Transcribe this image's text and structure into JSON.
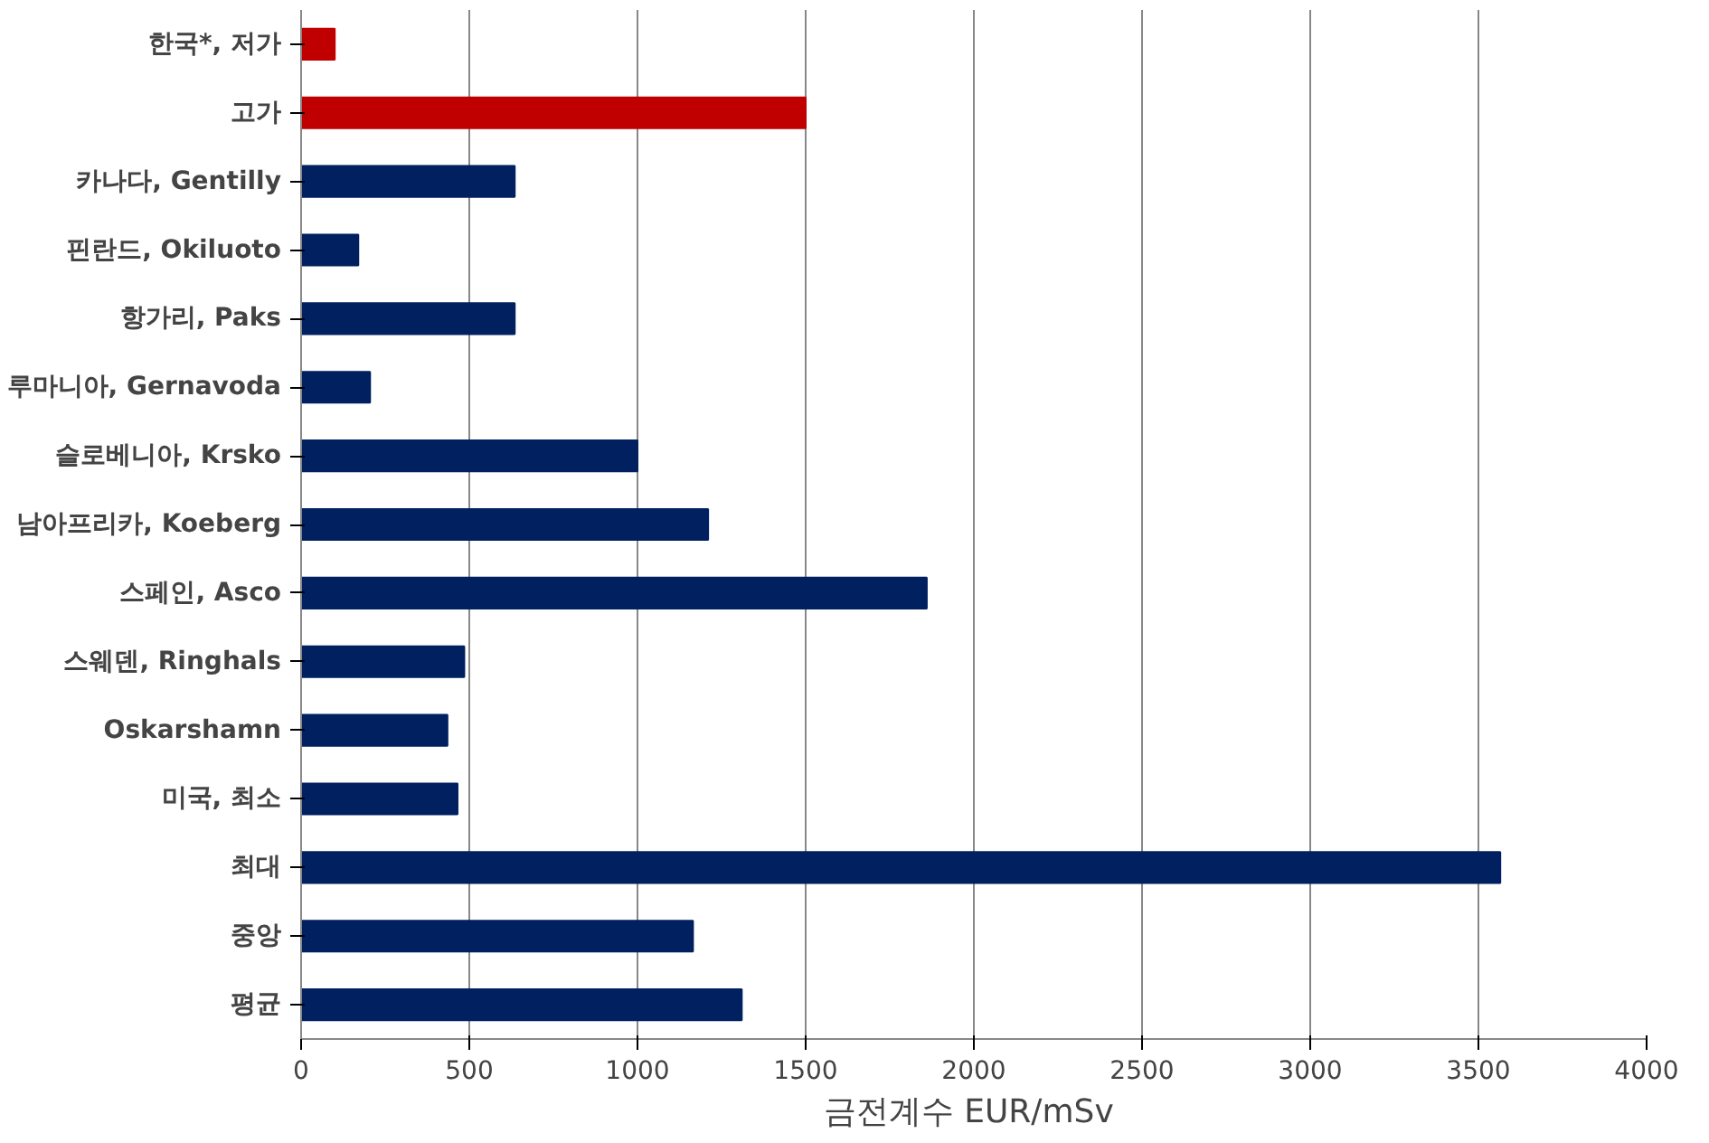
{
  "chart_data": {
    "type": "bar",
    "orientation": "horizontal",
    "xlabel": "금전계수  EUR/mSv",
    "categories": [
      "한국*, 저가",
      "고가",
      "카나다, Gentilly",
      "핀란드, Okiluoto",
      "항가리, Paks",
      "루마니아, Gernavoda",
      "슬로베니아, Krsko",
      "남아프리카, Koeberg",
      "스페인, Asco",
      "스웨덴, Ringhals",
      "Oskarshamn",
      "미국, 최소",
      "최대",
      "중앙",
      "평균"
    ],
    "values": [
      100,
      1500,
      635,
      170,
      635,
      205,
      1000,
      1210,
      1860,
      485,
      435,
      465,
      3565,
      1165,
      1310
    ],
    "colors": [
      "#c00000",
      "#c00000",
      "#002060",
      "#002060",
      "#002060",
      "#002060",
      "#002060",
      "#002060",
      "#002060",
      "#002060",
      "#002060",
      "#002060",
      "#002060",
      "#002060",
      "#002060"
    ],
    "xlim": [
      0,
      4000
    ],
    "xticks": [
      0,
      500,
      1000,
      1500,
      2000,
      2500,
      3000,
      3500,
      4000
    ],
    "grid": "x"
  }
}
